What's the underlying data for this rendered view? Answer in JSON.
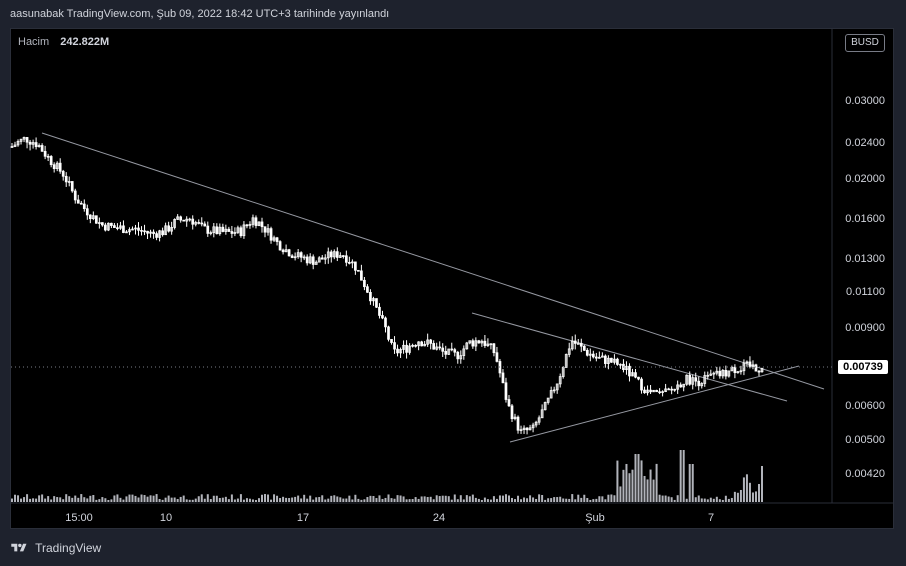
{
  "header": {
    "title": "aasunabak TradingView.com, Şub 09, 2022 18:42 UTC+3 tarihinde yayınlandı"
  },
  "legend": {
    "label": "Hacim",
    "value": "242.822M"
  },
  "currency": "BUSD",
  "footer": {
    "brand": "TradingView"
  },
  "colors": {
    "background": "#000000",
    "frame": "#1e222d",
    "candle": "#ffffff",
    "volume": "#d1d4dc",
    "trendline": "#9598a1",
    "text": "#d1d4dc"
  },
  "chart_data": {
    "type": "candlestick",
    "y_axis_ticks": [
      "0.03000",
      "0.02400",
      "0.02000",
      "0.01600",
      "0.01300",
      "0.01100",
      "0.00900",
      "0.00600",
      "0.00500",
      "0.00420"
    ],
    "x_axis_ticks": [
      "15:00",
      "10",
      "17",
      "24",
      "Şub",
      "7"
    ],
    "last_price": "0.00739",
    "price_path": [
      0.0235,
      0.0245,
      0.0238,
      0.022,
      0.0205,
      0.018,
      0.0165,
      0.0155,
      0.0153,
      0.0152,
      0.0151,
      0.0148,
      0.015,
      0.0158,
      0.016,
      0.0152,
      0.015,
      0.0149,
      0.015,
      0.016,
      0.0151,
      0.014,
      0.0133,
      0.013,
      0.0128,
      0.0132,
      0.0133,
      0.0125,
      0.011,
      0.0095,
      0.008,
      0.0082,
      0.0085,
      0.0083,
      0.008,
      0.0079,
      0.0084,
      0.0085,
      0.008,
      0.006,
      0.0052,
      0.0053,
      0.006,
      0.007,
      0.0085,
      0.0081,
      0.0078,
      0.0077,
      0.0075,
      0.007,
      0.0065,
      0.0064,
      0.0066,
      0.007,
      0.0069,
      0.0071,
      0.0072,
      0.0074,
      0.0075,
      0.0074
    ],
    "volume_spikes": [
      0.0,
      0.1,
      0.05,
      0.05,
      0.05,
      0.1,
      0.15,
      0.1,
      0.05,
      0.05
    ],
    "trendlines": [
      {
        "name": "",
        "from": [
          0,
          0.0245
        ],
        "to": [
          1,
          0.0063
        ]
      },
      {
        "name": "",
        "from": [
          0.57,
          0.0095
        ],
        "to": [
          1,
          0.0066
        ]
      },
      {
        "name": "",
        "from": [
          0.6,
          0.005
        ],
        "to": [
          1,
          0.0075
        ]
      }
    ]
  }
}
